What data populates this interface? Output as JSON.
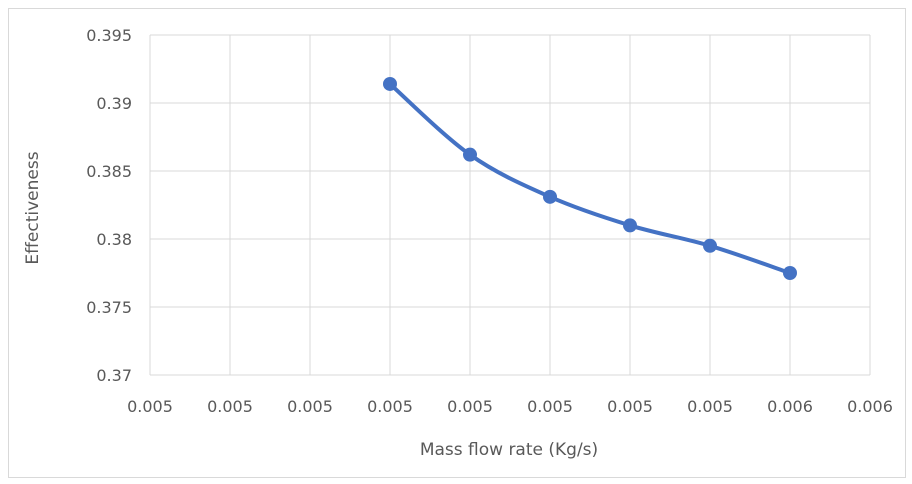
{
  "chart_data": {
    "type": "line",
    "title": "",
    "xlabel": "Mass flow rate (Kg/s)",
    "ylabel": "Effectiveness",
    "x_ticks": [
      "0.005",
      "0.005",
      "0.005",
      "0.005",
      "0.005",
      "0.005",
      "0.005",
      "0.005",
      "0.006",
      "0.006"
    ],
    "y_ticks": [
      "0.37",
      "0.375",
      "0.38",
      "0.385",
      "0.39",
      "0.395"
    ],
    "ylim": [
      0.37,
      0.395
    ],
    "grid": true,
    "legend": "none",
    "series": [
      {
        "tick_index": [
          3,
          4,
          5,
          6,
          7,
          8
        ],
        "values": [
          0.3914,
          0.3862,
          0.3831,
          0.381,
          0.3795,
          0.3775
        ],
        "color": "#4472c4"
      }
    ]
  }
}
